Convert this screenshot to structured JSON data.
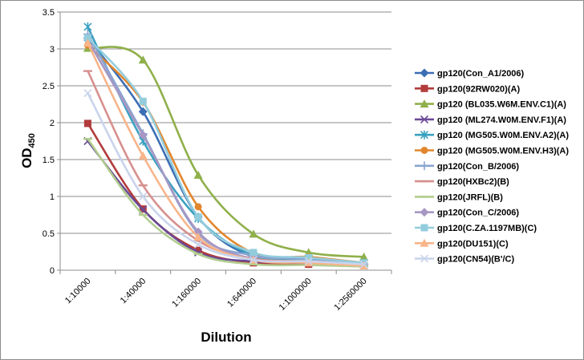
{
  "chart_data": {
    "type": "line",
    "xlabel": "Dilution",
    "ylabel": {
      "main": "OD",
      "sub": "450"
    },
    "categories": [
      "1:10000",
      "1:40000",
      "1:160000",
      "1:640000",
      "1:1000000",
      "1:2560000"
    ],
    "ylim": [
      0,
      3.5
    ],
    "yticks": [
      "0",
      "0.5",
      "1",
      "1.5",
      "2",
      "2.5",
      "3",
      "3.5"
    ],
    "grid": "horizontal",
    "legend_position": "right",
    "series": [
      {
        "name": "gp120(Con_A1/2006)",
        "color": "#3c6db4",
        "marker": "diamond",
        "values": [
          3.15,
          2.15,
          0.72,
          0.18,
          0.12,
          0.08
        ]
      },
      {
        "name": "gp120(92RW020)(A)",
        "color": "#b23b3b",
        "marker": "square",
        "values": [
          1.99,
          0.83,
          0.27,
          0.1,
          0.08,
          0.06
        ]
      },
      {
        "name": "gp120 (BL035.W6M.ENV.C1)(A)",
        "color": "#8fb04a",
        "marker": "triangle",
        "values": [
          3.01,
          2.85,
          1.29,
          0.49,
          0.24,
          0.18
        ]
      },
      {
        "name": "gp120 (ML274.W0M.ENV.F1)(A)",
        "color": "#6a4a96",
        "marker": "x",
        "values": [
          1.75,
          0.82,
          0.24,
          0.12,
          0.1,
          0.08
        ]
      },
      {
        "name": "gp120 (MG505.W0M.ENV.A2)(A)",
        "color": "#3aa1c0",
        "marker": "star",
        "values": [
          3.3,
          1.75,
          0.7,
          0.2,
          0.15,
          0.1
        ]
      },
      {
        "name": "gp120 (MG505.W0M.ENV.H3)(A)",
        "color": "#e2862e",
        "marker": "circle",
        "values": [
          3.05,
          2.28,
          0.86,
          0.23,
          0.18,
          0.1
        ]
      },
      {
        "name": "gp120(Con_B/2006)",
        "color": "#8aa4d2",
        "marker": "plus",
        "values": [
          3.2,
          1.85,
          0.5,
          0.2,
          0.15,
          0.08
        ]
      },
      {
        "name": "gp120(HXBc2)(B)",
        "color": "#d6908e",
        "marker": "dash",
        "values": [
          2.7,
          1.15,
          0.4,
          0.16,
          0.12,
          0.08
        ]
      },
      {
        "name": "gp120(JRFL)(B)",
        "color": "#b2cd8e",
        "marker": "dash",
        "values": [
          1.78,
          0.75,
          0.22,
          0.08,
          0.07,
          0.05
        ]
      },
      {
        "name": "gp120(Con_C/2006)",
        "color": "#a797c4",
        "marker": "diamond",
        "values": [
          3.12,
          1.83,
          0.52,
          0.15,
          0.12,
          0.08
        ]
      },
      {
        "name": "gp120(C.ZA.1197MB)(C)",
        "color": "#93cddd",
        "marker": "square",
        "values": [
          3.15,
          2.29,
          0.72,
          0.24,
          0.17,
          0.1
        ]
      },
      {
        "name": "gp120(DU151)(C)",
        "color": "#f8b58a",
        "marker": "triangle",
        "values": [
          3.08,
          1.55,
          0.45,
          0.14,
          0.1,
          0.06
        ]
      },
      {
        "name": "gp120(CN54)(B'/C)",
        "color": "#c9d4ec",
        "marker": "x",
        "values": [
          2.4,
          1.0,
          0.35,
          0.14,
          0.12,
          0.08
        ]
      }
    ]
  }
}
